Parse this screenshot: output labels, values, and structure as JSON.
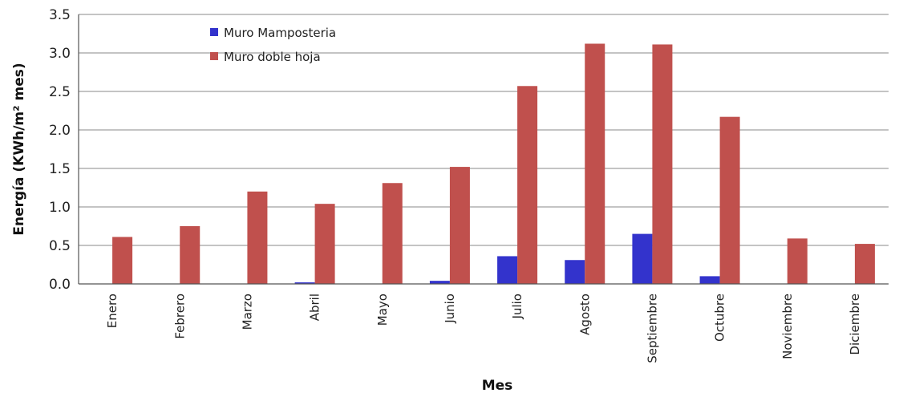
{
  "chart_data": {
    "type": "bar",
    "categories": [
      "Enero",
      "Febrero",
      "Marzo",
      "Abril",
      "Mayo",
      "Junio",
      "Julio",
      "Agosto",
      "Septiembre",
      "Octubre",
      "Noviembre",
      "Diciembre"
    ],
    "series": [
      {
        "name": "Muro Mamposteria",
        "color": "#3333cc",
        "values": [
          0.0,
          0.0,
          0.0,
          0.02,
          0.0,
          0.04,
          0.36,
          0.31,
          0.65,
          0.1,
          0.0,
          0.0
        ]
      },
      {
        "name": "Muro doble hoja",
        "color": "#c0504d",
        "values": [
          0.61,
          0.75,
          1.2,
          1.04,
          1.31,
          1.52,
          2.57,
          3.12,
          3.11,
          2.17,
          0.59,
          0.52
        ]
      }
    ],
    "title": "",
    "xlabel": "Mes",
    "ylabel": "Energía (KWh/m² mes)",
    "ylim": [
      0,
      3.5
    ],
    "yticks": [
      "0.0",
      "0.5",
      "1.0",
      "1.5",
      "2.0",
      "2.5",
      "3.0",
      "3.5"
    ],
    "grid": true,
    "legend_position": "top-left"
  }
}
